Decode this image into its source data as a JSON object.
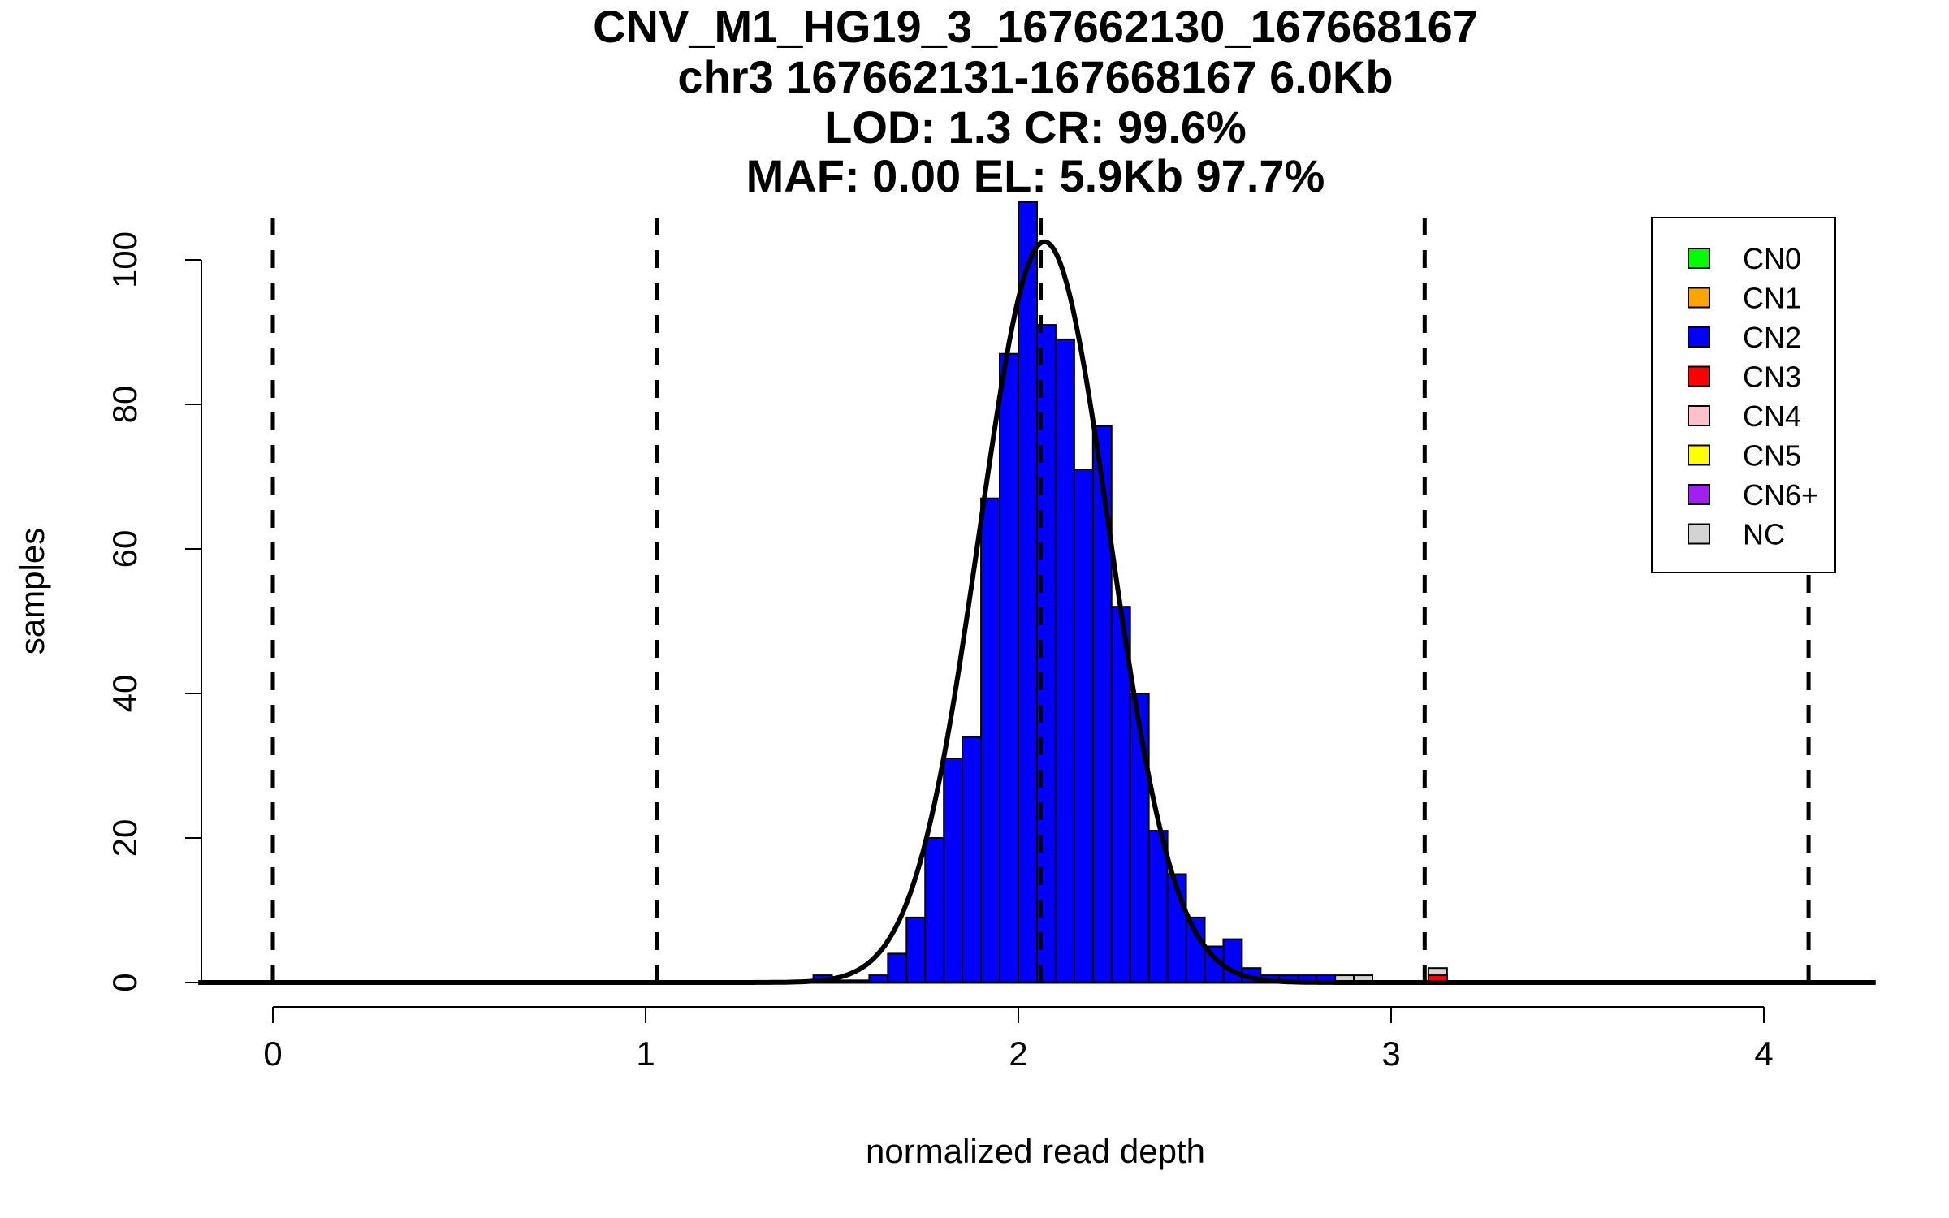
{
  "chart_data": {
    "type": "bar",
    "title_lines": [
      "CNV_M1_HG19_3_167662130_167668167",
      "chr3 167662131-167668167 6.0Kb",
      "LOD: 1.3 CR: 99.6%",
      "MAF: 0.00 EL: 5.9Kb 97.7%"
    ],
    "xlabel": "normalized read depth",
    "ylabel": "samples",
    "xlim": [
      -0.2,
      4.3
    ],
    "ylim": [
      0,
      108
    ],
    "x_ticks": [
      0,
      1,
      2,
      3,
      4
    ],
    "y_ticks": [
      0,
      20,
      40,
      60,
      80,
      100
    ],
    "bin_width": 0.05,
    "series": [
      {
        "name": "CN2",
        "color": "#0000FF",
        "bins": [
          {
            "x0": 1.45,
            "v": 1
          },
          {
            "x0": 1.5,
            "v": 0.3
          },
          {
            "x0": 1.55,
            "v": 0.3
          },
          {
            "x0": 1.6,
            "v": 1
          },
          {
            "x0": 1.65,
            "v": 4
          },
          {
            "x0": 1.7,
            "v": 9
          },
          {
            "x0": 1.75,
            "v": 20
          },
          {
            "x0": 1.8,
            "v": 31
          },
          {
            "x0": 1.85,
            "v": 34
          },
          {
            "x0": 1.9,
            "v": 67
          },
          {
            "x0": 1.95,
            "v": 87
          },
          {
            "x0": 2.0,
            "v": 108
          },
          {
            "x0": 2.05,
            "v": 91
          },
          {
            "x0": 2.1,
            "v": 89
          },
          {
            "x0": 2.15,
            "v": 71
          },
          {
            "x0": 2.2,
            "v": 77
          },
          {
            "x0": 2.25,
            "v": 52
          },
          {
            "x0": 2.3,
            "v": 40
          },
          {
            "x0": 2.35,
            "v": 21
          },
          {
            "x0": 2.4,
            "v": 15
          },
          {
            "x0": 2.45,
            "v": 9
          },
          {
            "x0": 2.5,
            "v": 5
          },
          {
            "x0": 2.55,
            "v": 6
          },
          {
            "x0": 2.6,
            "v": 2
          },
          {
            "x0": 2.65,
            "v": 1
          },
          {
            "x0": 2.7,
            "v": 1
          },
          {
            "x0": 2.75,
            "v": 1
          },
          {
            "x0": 2.8,
            "v": 1
          },
          {
            "x0": 2.85,
            "v": 0.5
          }
        ]
      },
      {
        "name": "NC",
        "color": "#D3D3D3",
        "bins": [
          {
            "x0": 2.85,
            "v": 1
          },
          {
            "x0": 2.9,
            "v": 1
          },
          {
            "x0": 3.1,
            "v": 2
          }
        ]
      },
      {
        "name": "CN3",
        "color": "#FF0000",
        "bins": [
          {
            "x0": 3.1,
            "v": 1
          }
        ]
      }
    ],
    "density_curve": {
      "mean": 2.07,
      "sd": 0.175,
      "peak": 102.5,
      "color": "#000000"
    },
    "dashed_lines_x": [
      0,
      1.03,
      2.06,
      3.09,
      4.12
    ],
    "legend": {
      "position": "top-right",
      "entries": [
        {
          "label": "CN0",
          "color": "#00FF00"
        },
        {
          "label": "CN1",
          "color": "#FFA500"
        },
        {
          "label": "CN2",
          "color": "#0000FF"
        },
        {
          "label": "CN3",
          "color": "#FF0000"
        },
        {
          "label": "CN4",
          "color": "#FFC0CB"
        },
        {
          "label": "CN5",
          "color": "#FFFF00"
        },
        {
          "label": "CN6+",
          "color": "#A020F0"
        },
        {
          "label": "NC",
          "color": "#D3D3D3"
        }
      ]
    }
  }
}
